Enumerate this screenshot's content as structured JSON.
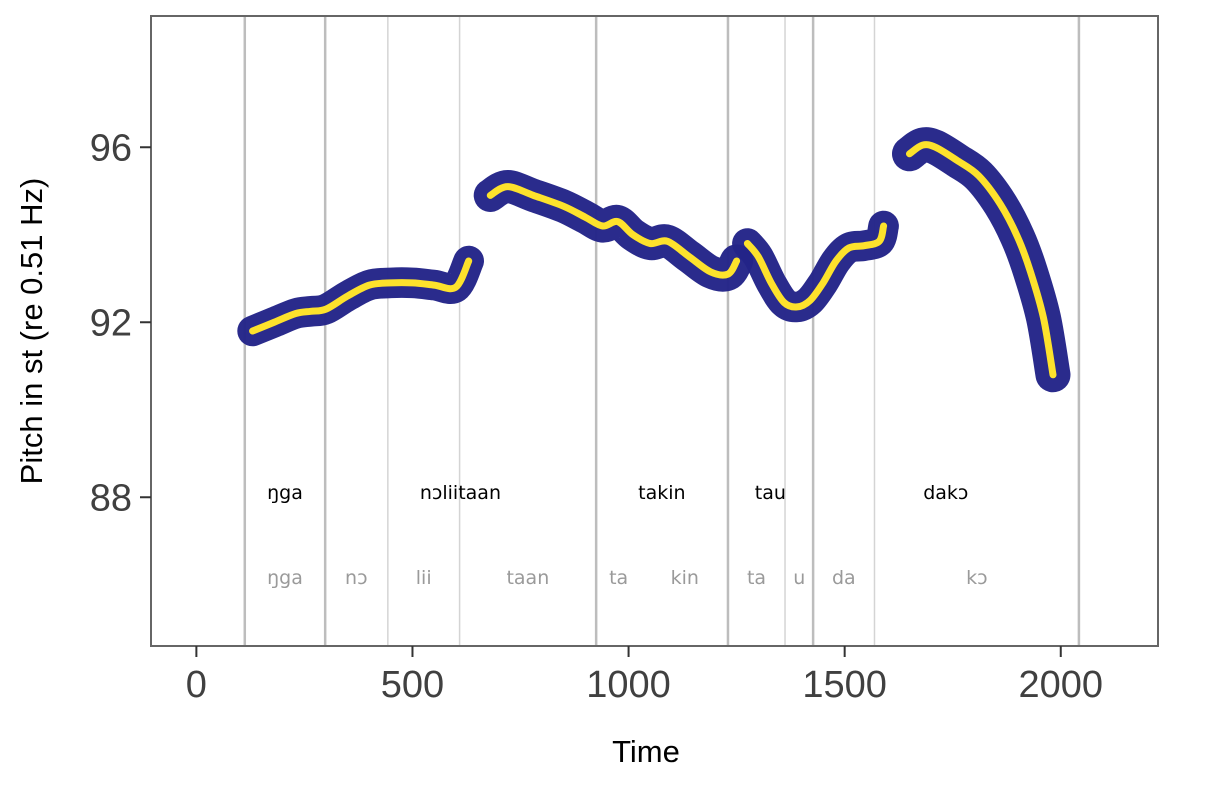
{
  "chart_data": {
    "type": "line",
    "title": "",
    "xlabel": "Time",
    "ylabel": "Pitch in st (re 0.51 Hz)",
    "xlim": [
      -105,
      2225
    ],
    "ylim": [
      84.6,
      99.0
    ],
    "x_ticks": [
      0,
      500,
      1000,
      1500,
      2000
    ],
    "x_tick_labels": [
      "0",
      "500",
      "1000",
      "1500",
      "2000"
    ],
    "y_ticks": [
      88,
      92,
      96
    ],
    "y_tick_labels": [
      "88",
      "92",
      "96"
    ],
    "grid": false,
    "colors": {
      "band": "#232488",
      "line": "#FDE22C",
      "word_boundary": "#bdbdbd",
      "syllable_boundary": "#d4d4d4",
      "frame": "#666666"
    },
    "word_boundaries": [
      112,
      298,
      925,
      1230,
      1427,
      2042
    ],
    "syllable_boundaries": [
      443,
      609,
      1362,
      1569
    ],
    "words": [
      {
        "label": "ŋga",
        "x": 205
      },
      {
        "label": "nɔliitaan",
        "x": 611
      },
      {
        "label": "takin",
        "x": 1077
      },
      {
        "label": "tau",
        "x": 1328
      },
      {
        "label": "dakɔ",
        "x": 1734
      }
    ],
    "syllables": [
      {
        "label": "ŋga",
        "x": 205
      },
      {
        "label": "nɔ",
        "x": 370
      },
      {
        "label": "lii",
        "x": 526
      },
      {
        "label": "taan",
        "x": 767
      },
      {
        "label": "ta",
        "x": 977
      },
      {
        "label": "kin",
        "x": 1130
      },
      {
        "label": "ta",
        "x": 1296
      },
      {
        "label": "u",
        "x": 1395
      },
      {
        "label": "da",
        "x": 1498
      },
      {
        "label": "kɔ",
        "x": 1806
      }
    ],
    "series": [
      {
        "x": [
          130,
          180,
          230,
          265,
          300,
          350,
          400,
          450,
          500,
          550,
          600,
          630
        ],
        "y": [
          91.8,
          92.0,
          92.2,
          92.25,
          92.3,
          92.6,
          92.85,
          92.9,
          92.9,
          92.85,
          92.8,
          93.4
        ],
        "band": 0.35
      },
      {
        "x": [
          680,
          720,
          780,
          850,
          900,
          940,
          975,
          1010,
          1050,
          1090,
          1140,
          1190,
          1230,
          1250
        ],
        "y": [
          94.9,
          95.1,
          94.9,
          94.65,
          94.4,
          94.2,
          94.3,
          94.0,
          93.8,
          93.85,
          93.5,
          93.15,
          93.1,
          93.4
        ],
        "band": 0.38
      },
      {
        "x": [
          1275,
          1300,
          1330,
          1360,
          1390,
          1420,
          1450,
          1480,
          1510,
          1545,
          1580,
          1590
        ],
        "y": [
          93.8,
          93.5,
          92.9,
          92.45,
          92.35,
          92.5,
          92.9,
          93.4,
          93.7,
          93.75,
          93.85,
          94.2
        ],
        "band": 0.35
      },
      {
        "x": [
          1650,
          1680,
          1710,
          1760,
          1810,
          1860,
          1900,
          1930,
          1960,
          1982
        ],
        "y": [
          95.85,
          96.05,
          96.0,
          95.7,
          95.35,
          94.7,
          93.95,
          93.15,
          92.1,
          90.8
        ],
        "band": 0.4
      }
    ]
  }
}
